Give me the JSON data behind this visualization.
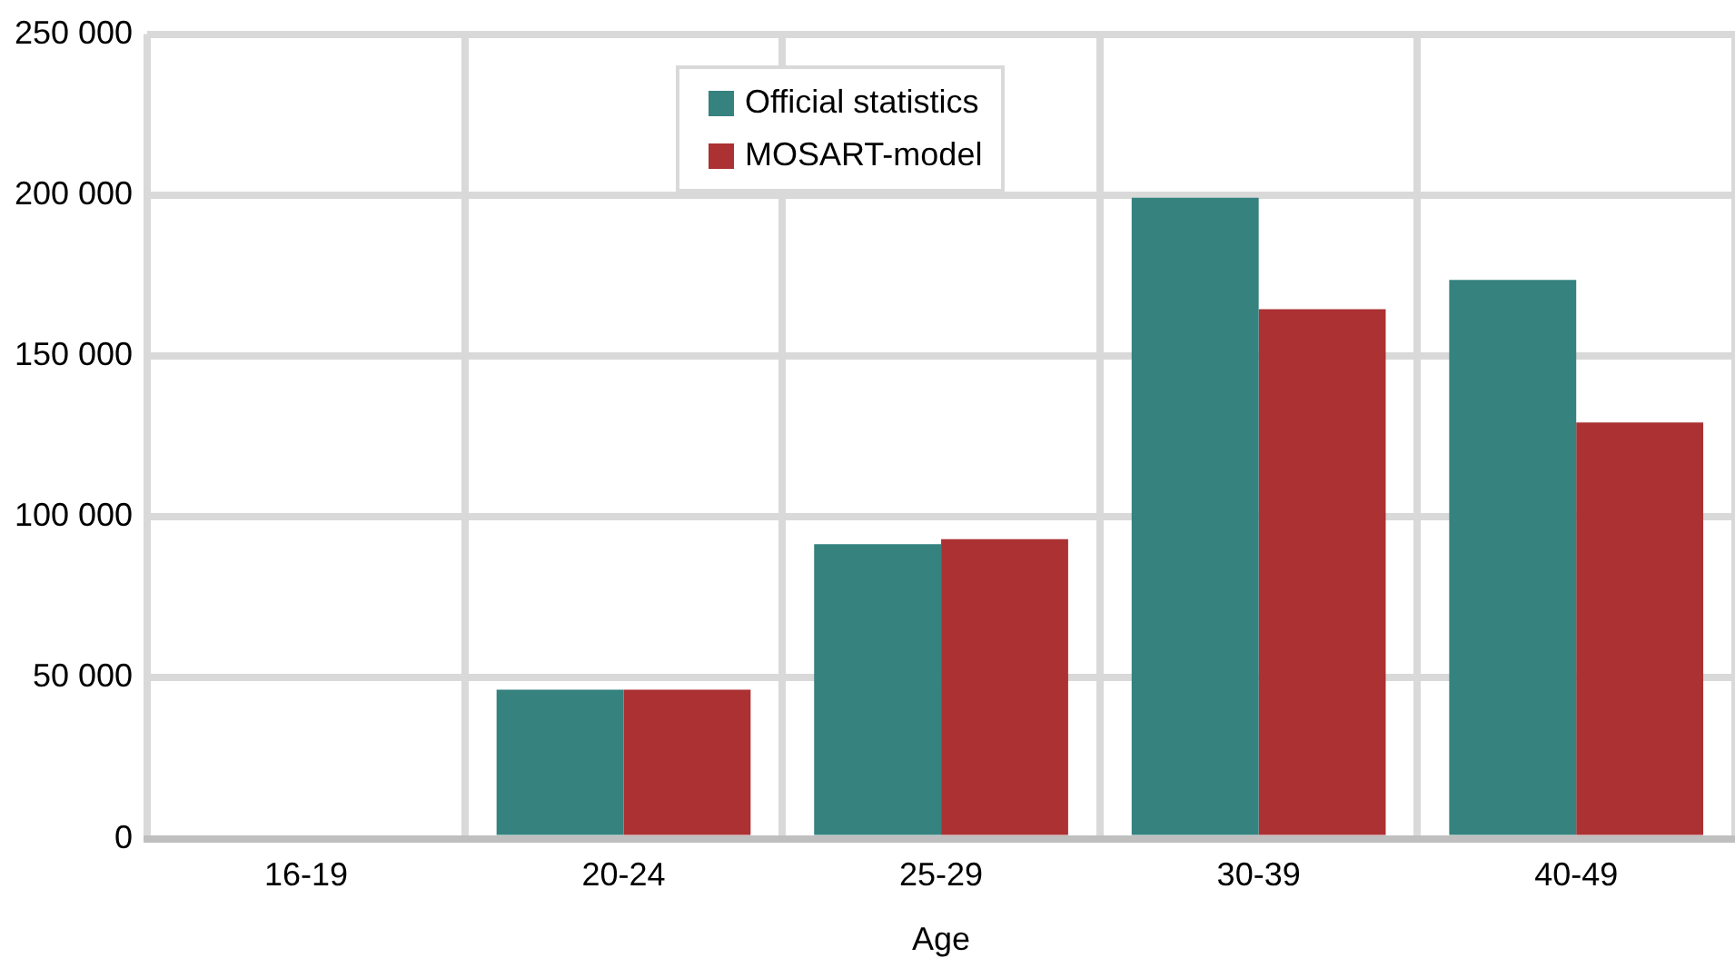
{
  "chart_data": {
    "type": "bar",
    "xlabel": "Age",
    "categories": [
      "16-19",
      "20-24",
      "25-29",
      "30-39",
      "40-49"
    ],
    "series": [
      {
        "name": "Official statistics",
        "color": "#35827f",
        "values": [
          0,
          46300,
          91500,
          199200,
          173600
        ]
      },
      {
        "name": "MOSART-model",
        "color": "#ac3133",
        "values": [
          0,
          46300,
          93100,
          164500,
          129300
        ]
      }
    ],
    "ylim": [
      0,
      250000
    ],
    "yticks": [
      {
        "value": 0,
        "label": "0"
      },
      {
        "value": 50000,
        "label": "50 000"
      },
      {
        "value": 100000,
        "label": "100 000"
      },
      {
        "value": 150000,
        "label": "150 000"
      },
      {
        "value": 200000,
        "label": "200 000"
      },
      {
        "value": 250000,
        "label": "250 000"
      }
    ],
    "grid": true,
    "legend": "top"
  }
}
